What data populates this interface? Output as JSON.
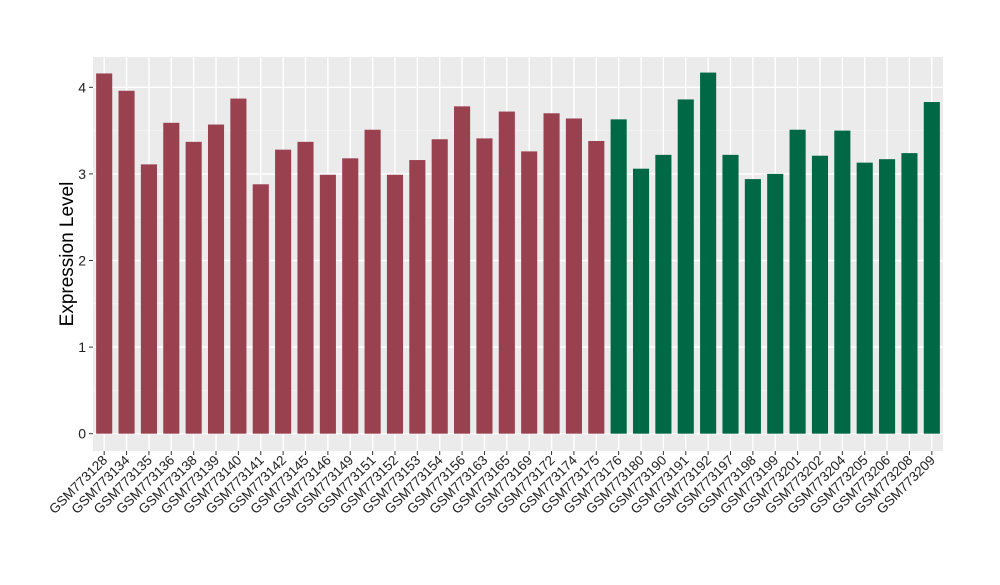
{
  "chart_data": {
    "type": "bar",
    "title": "",
    "xlabel": "",
    "ylabel": "Expression Level",
    "ylim": [
      -0.2,
      4.35
    ],
    "yticks": [
      0,
      1,
      2,
      3,
      4
    ],
    "grid": true,
    "legend": "none",
    "group_colors": [
      "#9a4150",
      "#016845"
    ],
    "categories": [
      "GSM773128",
      "GSM773134",
      "GSM773135",
      "GSM773136",
      "GSM773138",
      "GSM773139",
      "GSM773140",
      "GSM773141",
      "GSM773142",
      "GSM773145",
      "GSM773146",
      "GSM773149",
      "GSM773151",
      "GSM773152",
      "GSM773153",
      "GSM773154",
      "GSM773156",
      "GSM773163",
      "GSM773165",
      "GSM773169",
      "GSM773172",
      "GSM773174",
      "GSM773175",
      "GSM773176",
      "GSM773180",
      "GSM773190",
      "GSM773191",
      "GSM773192",
      "GSM773197",
      "GSM773198",
      "GSM773199",
      "GSM773201",
      "GSM773202",
      "GSM773204",
      "GSM773205",
      "GSM773206",
      "GSM773208",
      "GSM773209"
    ],
    "values": [
      4.16,
      3.96,
      3.11,
      3.59,
      3.37,
      3.57,
      3.87,
      2.88,
      3.28,
      3.37,
      2.99,
      3.18,
      3.51,
      2.99,
      3.16,
      3.4,
      3.78,
      3.41,
      3.72,
      3.26,
      3.7,
      3.64,
      3.38,
      3.63,
      3.06,
      3.22,
      3.86,
      4.17,
      3.22,
      2.94,
      3.0,
      3.51,
      3.21,
      3.5,
      3.13,
      3.17,
      3.24,
      3.83
    ],
    "groups": [
      0,
      0,
      0,
      0,
      0,
      0,
      0,
      0,
      0,
      0,
      0,
      0,
      0,
      0,
      0,
      0,
      0,
      0,
      0,
      0,
      0,
      0,
      0,
      1,
      1,
      1,
      1,
      1,
      1,
      1,
      1,
      1,
      1,
      1,
      1,
      1,
      1,
      1
    ]
  }
}
